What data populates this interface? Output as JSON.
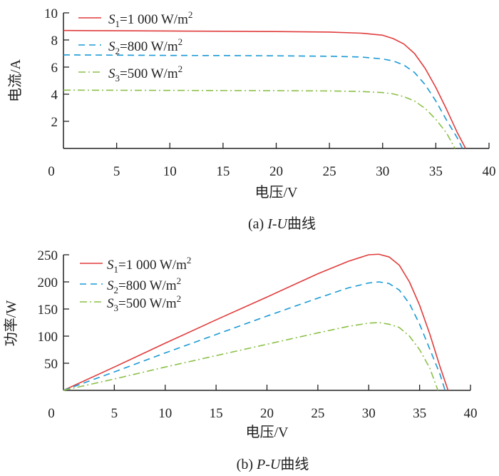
{
  "chart_data": [
    {
      "type": "line",
      "caption_prefix": "(a) ",
      "caption_italic": "I-U",
      "caption_suffix": "曲线",
      "xlabel": "电压/V",
      "ylabel": "电流/A",
      "xlim": [
        0,
        40
      ],
      "ylim": [
        0,
        10
      ],
      "xticks": [
        "0",
        "5",
        "10",
        "15",
        "20",
        "25",
        "30",
        "35",
        "40"
      ],
      "yticks": [
        "2",
        "4",
        "6",
        "8",
        "10"
      ],
      "legend_position": "top-left",
      "series": [
        {
          "name_s": "S",
          "name_sub": "1",
          "name_rest": "=1 000 W/m",
          "name_sup": "2",
          "color": "#e03c3c",
          "dash": "",
          "x": [
            0,
            5,
            10,
            15,
            20,
            25,
            28,
            30,
            31,
            32,
            33,
            34,
            35,
            36,
            37,
            37.8
          ],
          "y": [
            8.7,
            8.68,
            8.66,
            8.64,
            8.62,
            8.58,
            8.5,
            8.35,
            8.1,
            7.7,
            7.0,
            5.9,
            4.5,
            2.9,
            1.2,
            0
          ]
        },
        {
          "name_s": "S",
          "name_sub": "2",
          "name_rest": "=800 W/m",
          "name_sup": "2",
          "color": "#1a9ad6",
          "dash": "9,6",
          "x": [
            0,
            5,
            10,
            15,
            20,
            25,
            28,
            30,
            31,
            32,
            33,
            34,
            35,
            36,
            37,
            37.5
          ],
          "y": [
            6.9,
            6.88,
            6.86,
            6.85,
            6.83,
            6.8,
            6.74,
            6.6,
            6.45,
            6.15,
            5.6,
            4.7,
            3.5,
            2.1,
            0.8,
            0
          ]
        },
        {
          "name_s": "S",
          "name_sub": "3",
          "name_rest": "=500 W/m",
          "name_sup": "2",
          "color": "#8cc04a",
          "dash": "10,4,2,4",
          "x": [
            0,
            5,
            10,
            15,
            20,
            25,
            28,
            30,
            31,
            32,
            33,
            34,
            35,
            36,
            36.8
          ],
          "y": [
            4.3,
            4.29,
            4.28,
            4.27,
            4.26,
            4.24,
            4.2,
            4.12,
            4.02,
            3.82,
            3.5,
            2.95,
            2.15,
            1.15,
            0
          ]
        }
      ]
    },
    {
      "type": "line",
      "caption_prefix": "(b) ",
      "caption_italic": "P-U",
      "caption_suffix": "曲线",
      "xlabel": "电压/V",
      "ylabel": "功率/W",
      "xlim": [
        0,
        40
      ],
      "ylim": [
        0,
        250
      ],
      "xticks": [
        "0",
        "5",
        "10",
        "15",
        "20",
        "25",
        "30",
        "35",
        "40"
      ],
      "yticks": [
        "50",
        "100",
        "150",
        "200",
        "250"
      ],
      "legend_position": "top-left",
      "series": [
        {
          "name_s": "S",
          "name_sub": "1",
          "name_rest": "=1 000 W/m",
          "name_sup": "2",
          "color": "#e03c3c",
          "dash": "",
          "x": [
            0,
            5,
            10,
            15,
            20,
            25,
            28,
            30,
            31,
            32,
            33,
            34,
            35,
            36,
            37,
            37.8
          ],
          "y": [
            0,
            43,
            87,
            130,
            172,
            215,
            238,
            250,
            251,
            246,
            231,
            200,
            157,
            104,
            44,
            0
          ]
        },
        {
          "name_s": "S",
          "name_sub": "2",
          "name_rest": "=800 W/m",
          "name_sup": "2",
          "color": "#1a9ad6",
          "dash": "9,6",
          "x": [
            0,
            5,
            10,
            15,
            20,
            25,
            28,
            30,
            31,
            32,
            33,
            34,
            35,
            36,
            37,
            37.5
          ],
          "y": [
            0,
            34,
            69,
            103,
            137,
            170,
            189,
            198,
            200,
            197,
            185,
            160,
            122,
            76,
            30,
            0
          ]
        },
        {
          "name_s": "S",
          "name_sub": "3",
          "name_rest": "=500 W/m",
          "name_sup": "2",
          "color": "#8cc04a",
          "dash": "10,4,2,4",
          "x": [
            0,
            5,
            10,
            15,
            20,
            25,
            28,
            30,
            31,
            32,
            33,
            34,
            35,
            36,
            36.8
          ],
          "y": [
            0,
            21,
            43,
            64,
            85,
            106,
            118,
            124,
            125,
            122,
            116,
            100,
            75,
            41,
            0
          ]
        }
      ]
    }
  ]
}
